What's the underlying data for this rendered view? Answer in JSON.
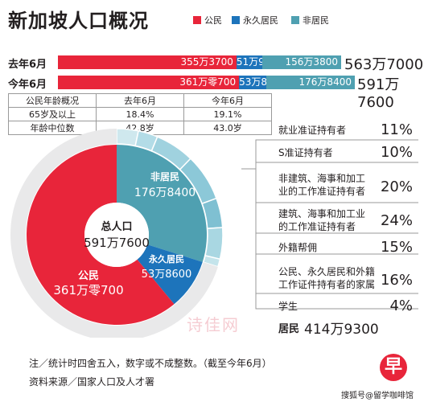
{
  "title": "新加坡人口概况",
  "legend": [
    {
      "label": "公民",
      "color": "#e8253a"
    },
    {
      "label": "永久居民",
      "color": "#1d74bb"
    },
    {
      "label": "非居民",
      "color": "#4fa0b1"
    }
  ],
  "rows": [
    {
      "label": "去年6月",
      "citizens": "355万3700",
      "pr": "51万9500",
      "nonres": "156万3800",
      "total": "563万7000"
    },
    {
      "label": "今年6月",
      "citizens": "361万零700",
      "pr": "53万8600",
      "nonres": "176万8400",
      "total": "591万7600"
    }
  ],
  "age_table": {
    "headers": [
      "公民年龄概况",
      "去年6月",
      "今年6月"
    ],
    "rows": [
      [
        "65岁及以上",
        "18.4%",
        "19.1%"
      ],
      [
        "年龄中位数",
        "42.8岁",
        "43.0岁"
      ]
    ]
  },
  "donut": {
    "center_label": "总人口",
    "center_value": "591万7600",
    "segments": [
      {
        "label": "非居民",
        "value_text": "176万8400"
      },
      {
        "label": "永久居民",
        "value_text": "53万8600"
      },
      {
        "label": "公民",
        "value_text": "361万零700"
      }
    ]
  },
  "breakdown": [
    {
      "label": "就业准证持有者",
      "pct": "11%"
    },
    {
      "label": "S准证持有者",
      "pct": "10%"
    },
    {
      "label": "非建筑、海事和加工业的工作准证持有者",
      "pct": "20%"
    },
    {
      "label": "建筑、海事和加工业的工作准证持有者",
      "pct": "24%"
    },
    {
      "label": "外籍帮佣",
      "pct": "15%"
    },
    {
      "label": "公民、永久居民和外籍工作证件持有者的家属",
      "pct": "16%"
    },
    {
      "label": "学生",
      "pct": "4%"
    }
  ],
  "residents": {
    "label": "居民",
    "value": "414万9300"
  },
  "note": "注／统计时四舍五入，数字或不成整数。（截至今年6月）",
  "source": "资料来源／国家人口及人才署",
  "watermark": "诗佳网",
  "footer_credit": "搜狐号@留学咖啡馆",
  "chart_data": {
    "type": "bar",
    "orientation": "horizontal-stacked",
    "categories": [
      "去年6月",
      "今年6月"
    ],
    "series": [
      {
        "name": "公民",
        "values": [
          3553700,
          3610700
        ]
      },
      {
        "name": "永久居民",
        "values": [
          519500,
          538600
        ]
      },
      {
        "name": "非居民",
        "values": [
          1563800,
          1768400
        ]
      }
    ],
    "totals": [
      5637000,
      5917600
    ],
    "donut": {
      "type": "pie",
      "labels": [
        "公民",
        "永久居民",
        "非居民"
      ],
      "values": [
        3610700,
        538600,
        1768400
      ]
    },
    "nonresident_breakdown": {
      "type": "pie",
      "labels": [
        "就业准证持有者",
        "S准证持有者",
        "非建筑、海事和加工业的工作准证持有者",
        "建筑、海事和加工业的工作准证持有者",
        "外籍帮佣",
        "公民、永久居民和外籍工作证件持有者的家属",
        "学生"
      ],
      "values": [
        11,
        10,
        20,
        24,
        15,
        16,
        4
      ]
    }
  }
}
